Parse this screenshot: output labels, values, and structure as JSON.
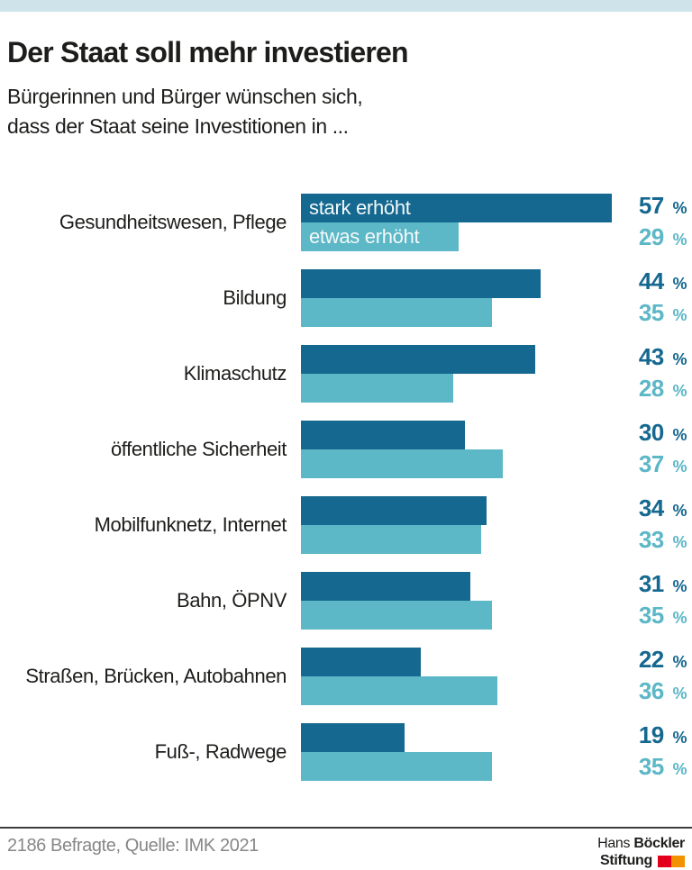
{
  "header": {
    "title": "Der Staat soll mehr investieren",
    "subtitle_line1": "Bürgerinnen und Bürger wünschen sich,",
    "subtitle_line2": "dass der Staat seine Investitionen in ..."
  },
  "chart_data": {
    "type": "bar",
    "orientation": "horizontal",
    "title": "Der Staat soll mehr investieren",
    "subtitle": "Bürgerinnen und Bürger wünschen sich, dass der Staat seine Investitionen in ...",
    "categories": [
      "Gesundheitswesen, Pflege",
      "Bildung",
      "Klimaschutz",
      "öffentliche Sicherheit",
      "Mobilfunknetz, Internet",
      "Bahn, ÖPNV",
      "Straßen, Brücken, Autobahnen",
      "Fuß-, Radwege"
    ],
    "series": [
      {
        "name": "stark erhöht",
        "color": "#15688f",
        "values": [
          57,
          44,
          43,
          30,
          34,
          31,
          22,
          19
        ]
      },
      {
        "name": "etwas erhöht",
        "color": "#5cb7c6",
        "values": [
          29,
          35,
          28,
          37,
          33,
          35,
          36,
          35
        ]
      }
    ],
    "value_suffix": "%",
    "unit": "percent",
    "xlim": [
      0,
      60
    ],
    "grid": false,
    "legend_position": "inside-first-bars"
  },
  "footer": {
    "source": "2186 Befragte, Quelle: IMK 2021",
    "logo": {
      "line1_regular": "Hans",
      "line1_bold": "Böckler",
      "line2_bold": "Stiftung",
      "square_colors": [
        "#e2001a",
        "#f39200"
      ]
    }
  },
  "colors": {
    "top_band": "#cfe3ea",
    "bar_dark": "#15688f",
    "bar_light": "#5cb7c6",
    "text": "#1d1d1b",
    "source_text": "#878787",
    "footer_rule": "#3d3d3c"
  }
}
